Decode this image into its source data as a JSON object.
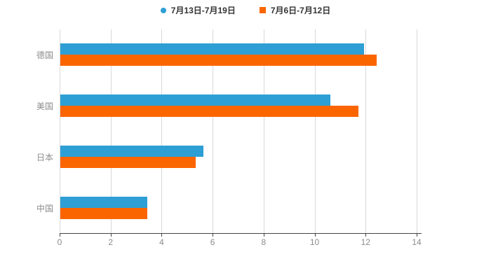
{
  "colors": {
    "background": "#ffffff",
    "series_blue": "#2D9FD4",
    "series_orange": "#FB6500",
    "axis_line": "#444444",
    "gridline": "#d9d9d9",
    "tick_label": "#8c8c8c",
    "legend_text": "#333333"
  },
  "legend": {
    "items": [
      {
        "label": "7月13日-7月19日",
        "marker": "circle",
        "color": "#2D9FD4"
      },
      {
        "label": "7月6日-7月12日",
        "marker": "square",
        "color": "#FB6500"
      }
    ]
  },
  "chart_data": {
    "type": "bar",
    "orientation": "horizontal",
    "title": "",
    "xlabel": "",
    "ylabel": "",
    "categories": [
      "德国",
      "美国",
      "日本",
      "中国"
    ],
    "series": [
      {
        "name": "7月13日-7月19日",
        "color": "#2D9FD4",
        "values": [
          11.9,
          10.6,
          5.6,
          3.4
        ]
      },
      {
        "name": "7月6日-7月12日",
        "color": "#FB6500",
        "values": [
          12.4,
          11.7,
          5.3,
          3.4
        ]
      }
    ],
    "xlim": [
      0,
      14.2
    ],
    "xticks": [
      0,
      2,
      4,
      6,
      8,
      10,
      12,
      14
    ],
    "grid": true,
    "legend_position": "top"
  }
}
